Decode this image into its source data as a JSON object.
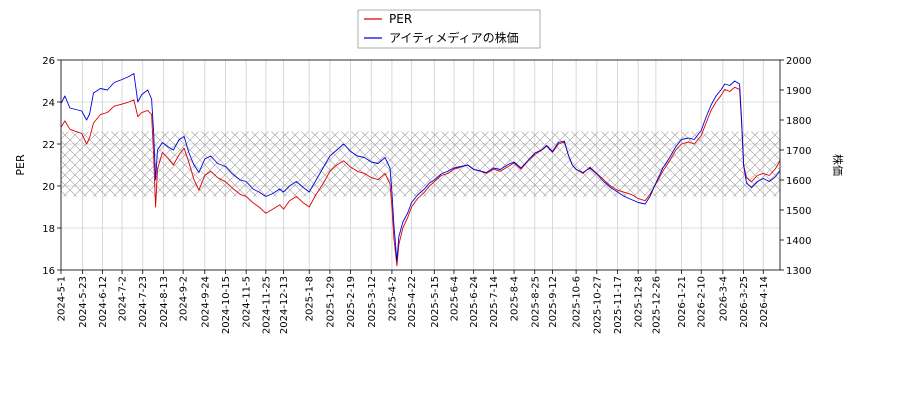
{
  "chart_data": {
    "type": "line",
    "title": "",
    "xlabel": "",
    "ylabel_left": "PER",
    "ylabel_right": "株価",
    "xlim": [
      "2024-05-01",
      "2026-05-01"
    ],
    "ylim_left": [
      16,
      26
    ],
    "ylim_right": [
      1300,
      2000
    ],
    "yticks_left": [
      "16",
      "18",
      "20",
      "22",
      "24",
      "26"
    ],
    "yticks_right": [
      "1300",
      "1400",
      "1500",
      "1600",
      "1700",
      "1800",
      "1900",
      "2000"
    ],
    "xticks": [
      "2024-5-1",
      "2024-5-23",
      "2024-6-12",
      "2024-7-2",
      "2024-7-23",
      "2024-8-13",
      "2024-9-2",
      "2024-9-24",
      "2024-10-15",
      "2024-11-5",
      "2024-11-25",
      "2024-12-13",
      "2025-1-8",
      "2025-1-29",
      "2025-2-19",
      "2025-3-12",
      "2025-4-2",
      "2025-4-22",
      "2025-5-15",
      "2025-6-4",
      "2025-6-24",
      "2025-7-14",
      "2025-8-4",
      "2025-8-25",
      "2025-9-12",
      "2025-10-6",
      "2025-10-27",
      "2025-11-17",
      "2025-12-8",
      "2025-12-26",
      "2026-1-21",
      "2026-2-10",
      "2026-3-4",
      "2026-3-25",
      "2026-4-14"
    ],
    "grid": true,
    "legend_position": "top-center",
    "shaded_band_left": [
      19.5,
      22.6
    ],
    "series": [
      {
        "name": "PER",
        "axis": "left",
        "color": "#dd0000",
        "points": [
          [
            "2024-05-01",
            22.8
          ],
          [
            "2024-05-05",
            23.1
          ],
          [
            "2024-05-10",
            22.7
          ],
          [
            "2024-05-16",
            22.6
          ],
          [
            "2024-05-22",
            22.5
          ],
          [
            "2024-05-27",
            22.0
          ],
          [
            "2024-05-30",
            22.3
          ],
          [
            "2024-06-03",
            23.0
          ],
          [
            "2024-06-10",
            23.4
          ],
          [
            "2024-06-17",
            23.5
          ],
          [
            "2024-06-24",
            23.8
          ],
          [
            "2024-07-02",
            23.9
          ],
          [
            "2024-07-09",
            24.0
          ],
          [
            "2024-07-14",
            24.1
          ],
          [
            "2024-07-18",
            23.3
          ],
          [
            "2024-07-22",
            23.5
          ],
          [
            "2024-07-28",
            23.6
          ],
          [
            "2024-08-01",
            23.4
          ],
          [
            "2024-08-03",
            21.5
          ],
          [
            "2024-08-05",
            19.0
          ],
          [
            "2024-08-07",
            20.8
          ],
          [
            "2024-08-12",
            21.6
          ],
          [
            "2024-08-18",
            21.3
          ],
          [
            "2024-08-23",
            21.0
          ],
          [
            "2024-08-29",
            21.5
          ],
          [
            "2024-09-03",
            21.8
          ],
          [
            "2024-09-08",
            21.1
          ],
          [
            "2024-09-13",
            20.3
          ],
          [
            "2024-09-18",
            19.8
          ],
          [
            "2024-09-24",
            20.5
          ],
          [
            "2024-09-30",
            20.7
          ],
          [
            "2024-10-07",
            20.4
          ],
          [
            "2024-10-15",
            20.2
          ],
          [
            "2024-10-22",
            19.9
          ],
          [
            "2024-10-30",
            19.6
          ],
          [
            "2024-11-05",
            19.5
          ],
          [
            "2024-11-12",
            19.2
          ],
          [
            "2024-11-18",
            19.0
          ],
          [
            "2024-11-25",
            18.7
          ],
          [
            "2024-12-02",
            18.9
          ],
          [
            "2024-12-09",
            19.1
          ],
          [
            "2024-12-13",
            18.9
          ],
          [
            "2024-12-19",
            19.3
          ],
          [
            "2024-12-26",
            19.5
          ],
          [
            "2025-01-02",
            19.2
          ],
          [
            "2025-01-08",
            19.0
          ],
          [
            "2025-01-15",
            19.6
          ],
          [
            "2025-01-22",
            20.1
          ],
          [
            "2025-01-29",
            20.7
          ],
          [
            "2025-02-05",
            21.0
          ],
          [
            "2025-02-12",
            21.2
          ],
          [
            "2025-02-19",
            20.9
          ],
          [
            "2025-02-26",
            20.7
          ],
          [
            "2025-03-05",
            20.6
          ],
          [
            "2025-03-12",
            20.4
          ],
          [
            "2025-03-19",
            20.3
          ],
          [
            "2025-03-26",
            20.6
          ],
          [
            "2025-03-31",
            20.1
          ],
          [
            "2025-04-02",
            19.0
          ],
          [
            "2025-04-04",
            17.5
          ],
          [
            "2025-04-07",
            16.2
          ],
          [
            "2025-04-09",
            17.2
          ],
          [
            "2025-04-13",
            18.0
          ],
          [
            "2025-04-18",
            18.5
          ],
          [
            "2025-04-22",
            19.0
          ],
          [
            "2025-04-28",
            19.4
          ],
          [
            "2025-05-05",
            19.7
          ],
          [
            "2025-05-10",
            20.0
          ],
          [
            "2025-05-15",
            20.2
          ],
          [
            "2025-05-22",
            20.5
          ],
          [
            "2025-05-29",
            20.6
          ],
          [
            "2025-06-04",
            20.8
          ],
          [
            "2025-06-11",
            20.9
          ],
          [
            "2025-06-18",
            21.0
          ],
          [
            "2025-06-24",
            20.8
          ],
          [
            "2025-07-01",
            20.7
          ],
          [
            "2025-07-07",
            20.6
          ],
          [
            "2025-07-14",
            20.8
          ],
          [
            "2025-07-21",
            20.7
          ],
          [
            "2025-07-28",
            20.9
          ],
          [
            "2025-08-04",
            21.1
          ],
          [
            "2025-08-11",
            20.8
          ],
          [
            "2025-08-18",
            21.2
          ],
          [
            "2025-08-25",
            21.5
          ],
          [
            "2025-09-01",
            21.7
          ],
          [
            "2025-09-06",
            21.9
          ],
          [
            "2025-09-12",
            21.6
          ],
          [
            "2025-09-18",
            22.0
          ],
          [
            "2025-09-24",
            22.1
          ],
          [
            "2025-09-28",
            21.5
          ],
          [
            "2025-10-02",
            21.0
          ],
          [
            "2025-10-06",
            20.8
          ],
          [
            "2025-10-13",
            20.6
          ],
          [
            "2025-10-20",
            20.9
          ],
          [
            "2025-10-27",
            20.6
          ],
          [
            "2025-11-03",
            20.3
          ],
          [
            "2025-11-10",
            20.0
          ],
          [
            "2025-11-17",
            19.8
          ],
          [
            "2025-11-24",
            19.7
          ],
          [
            "2025-12-01",
            19.6
          ],
          [
            "2025-12-08",
            19.4
          ],
          [
            "2025-12-15",
            19.3
          ],
          [
            "2025-12-20",
            19.6
          ],
          [
            "2025-12-26",
            20.1
          ],
          [
            "2026-01-02",
            20.7
          ],
          [
            "2026-01-09",
            21.2
          ],
          [
            "2026-01-15",
            21.7
          ],
          [
            "2026-01-21",
            22.0
          ],
          [
            "2026-01-28",
            22.1
          ],
          [
            "2026-02-03",
            22.0
          ],
          [
            "2026-02-10",
            22.4
          ],
          [
            "2026-02-15",
            23.0
          ],
          [
            "2026-02-20",
            23.6
          ],
          [
            "2026-02-25",
            24.0
          ],
          [
            "2026-03-02",
            24.3
          ],
          [
            "2026-03-06",
            24.6
          ],
          [
            "2026-03-11",
            24.5
          ],
          [
            "2026-03-16",
            24.7
          ],
          [
            "2026-03-21",
            24.6
          ],
          [
            "2026-03-23",
            23.0
          ],
          [
            "2026-03-25",
            21.0
          ],
          [
            "2026-03-28",
            20.4
          ],
          [
            "2026-04-02",
            20.2
          ],
          [
            "2026-04-08",
            20.5
          ],
          [
            "2026-04-14",
            20.6
          ],
          [
            "2026-04-20",
            20.5
          ],
          [
            "2026-04-26",
            20.8
          ],
          [
            "2026-05-01",
            21.2
          ]
        ]
      },
      {
        "name": "アイティメディアの株価",
        "axis": "right",
        "color": "#0000dd",
        "points": [
          [
            "2024-05-01",
            1855
          ],
          [
            "2024-05-05",
            1880
          ],
          [
            "2024-05-10",
            1840
          ],
          [
            "2024-05-16",
            1835
          ],
          [
            "2024-05-22",
            1830
          ],
          [
            "2024-05-27",
            1800
          ],
          [
            "2024-05-30",
            1820
          ],
          [
            "2024-06-03",
            1890
          ],
          [
            "2024-06-10",
            1905
          ],
          [
            "2024-06-17",
            1900
          ],
          [
            "2024-06-24",
            1925
          ],
          [
            "2024-07-02",
            1935
          ],
          [
            "2024-07-09",
            1945
          ],
          [
            "2024-07-14",
            1955
          ],
          [
            "2024-07-18",
            1860
          ],
          [
            "2024-07-22",
            1885
          ],
          [
            "2024-07-28",
            1900
          ],
          [
            "2024-08-01",
            1870
          ],
          [
            "2024-08-03",
            1760
          ],
          [
            "2024-08-05",
            1600
          ],
          [
            "2024-08-07",
            1700
          ],
          [
            "2024-08-12",
            1725
          ],
          [
            "2024-08-18",
            1710
          ],
          [
            "2024-08-23",
            1700
          ],
          [
            "2024-08-29",
            1735
          ],
          [
            "2024-09-03",
            1745
          ],
          [
            "2024-09-08",
            1690
          ],
          [
            "2024-09-13",
            1650
          ],
          [
            "2024-09-18",
            1625
          ],
          [
            "2024-09-24",
            1670
          ],
          [
            "2024-09-30",
            1680
          ],
          [
            "2024-10-07",
            1655
          ],
          [
            "2024-10-15",
            1645
          ],
          [
            "2024-10-22",
            1620
          ],
          [
            "2024-10-30",
            1600
          ],
          [
            "2024-11-05",
            1595
          ],
          [
            "2024-11-12",
            1570
          ],
          [
            "2024-11-18",
            1560
          ],
          [
            "2024-11-25",
            1545
          ],
          [
            "2024-12-02",
            1555
          ],
          [
            "2024-12-09",
            1570
          ],
          [
            "2024-12-13",
            1560
          ],
          [
            "2024-12-19",
            1580
          ],
          [
            "2024-12-26",
            1595
          ],
          [
            "2025-01-02",
            1575
          ],
          [
            "2025-01-08",
            1560
          ],
          [
            "2025-01-15",
            1600
          ],
          [
            "2025-01-22",
            1640
          ],
          [
            "2025-01-29",
            1680
          ],
          [
            "2025-02-05",
            1700
          ],
          [
            "2025-02-12",
            1720
          ],
          [
            "2025-02-19",
            1695
          ],
          [
            "2025-02-26",
            1680
          ],
          [
            "2025-03-05",
            1675
          ],
          [
            "2025-03-12",
            1660
          ],
          [
            "2025-03-19",
            1655
          ],
          [
            "2025-03-26",
            1675
          ],
          [
            "2025-03-31",
            1640
          ],
          [
            "2025-04-02",
            1560
          ],
          [
            "2025-04-04",
            1450
          ],
          [
            "2025-04-07",
            1330
          ],
          [
            "2025-04-09",
            1410
          ],
          [
            "2025-04-13",
            1460
          ],
          [
            "2025-04-18",
            1490
          ],
          [
            "2025-04-22",
            1525
          ],
          [
            "2025-04-28",
            1550
          ],
          [
            "2025-05-05",
            1570
          ],
          [
            "2025-05-10",
            1590
          ],
          [
            "2025-05-15",
            1600
          ],
          [
            "2025-05-22",
            1620
          ],
          [
            "2025-05-29",
            1630
          ],
          [
            "2025-06-04",
            1640
          ],
          [
            "2025-06-11",
            1645
          ],
          [
            "2025-06-18",
            1650
          ],
          [
            "2025-06-24",
            1635
          ],
          [
            "2025-07-01",
            1630
          ],
          [
            "2025-07-07",
            1625
          ],
          [
            "2025-07-14",
            1640
          ],
          [
            "2025-07-21",
            1635
          ],
          [
            "2025-07-28",
            1650
          ],
          [
            "2025-08-04",
            1660
          ],
          [
            "2025-08-11",
            1640
          ],
          [
            "2025-08-18",
            1665
          ],
          [
            "2025-08-25",
            1690
          ],
          [
            "2025-09-01",
            1700
          ],
          [
            "2025-09-06",
            1715
          ],
          [
            "2025-09-12",
            1695
          ],
          [
            "2025-09-18",
            1725
          ],
          [
            "2025-09-24",
            1730
          ],
          [
            "2025-09-28",
            1685
          ],
          [
            "2025-10-02",
            1650
          ],
          [
            "2025-10-06",
            1635
          ],
          [
            "2025-10-13",
            1625
          ],
          [
            "2025-10-20",
            1640
          ],
          [
            "2025-10-27",
            1620
          ],
          [
            "2025-11-03",
            1595
          ],
          [
            "2025-11-10",
            1575
          ],
          [
            "2025-11-17",
            1560
          ],
          [
            "2025-11-24",
            1545
          ],
          [
            "2025-12-01",
            1535
          ],
          [
            "2025-12-08",
            1525
          ],
          [
            "2025-12-15",
            1520
          ],
          [
            "2025-12-20",
            1545
          ],
          [
            "2025-12-26",
            1590
          ],
          [
            "2026-01-02",
            1640
          ],
          [
            "2026-01-09",
            1675
          ],
          [
            "2026-01-15",
            1710
          ],
          [
            "2026-01-21",
            1735
          ],
          [
            "2026-01-28",
            1740
          ],
          [
            "2026-02-03",
            1735
          ],
          [
            "2026-02-10",
            1765
          ],
          [
            "2026-02-15",
            1810
          ],
          [
            "2026-02-20",
            1850
          ],
          [
            "2026-02-25",
            1880
          ],
          [
            "2026-03-02",
            1900
          ],
          [
            "2026-03-06",
            1920
          ],
          [
            "2026-03-11",
            1915
          ],
          [
            "2026-03-16",
            1930
          ],
          [
            "2026-03-21",
            1920
          ],
          [
            "2026-03-23",
            1800
          ],
          [
            "2026-03-25",
            1650
          ],
          [
            "2026-03-28",
            1590
          ],
          [
            "2026-04-02",
            1575
          ],
          [
            "2026-04-08",
            1595
          ],
          [
            "2026-04-14",
            1605
          ],
          [
            "2026-04-20",
            1595
          ],
          [
            "2026-04-26",
            1610
          ],
          [
            "2026-05-01",
            1630
          ]
        ]
      }
    ]
  }
}
